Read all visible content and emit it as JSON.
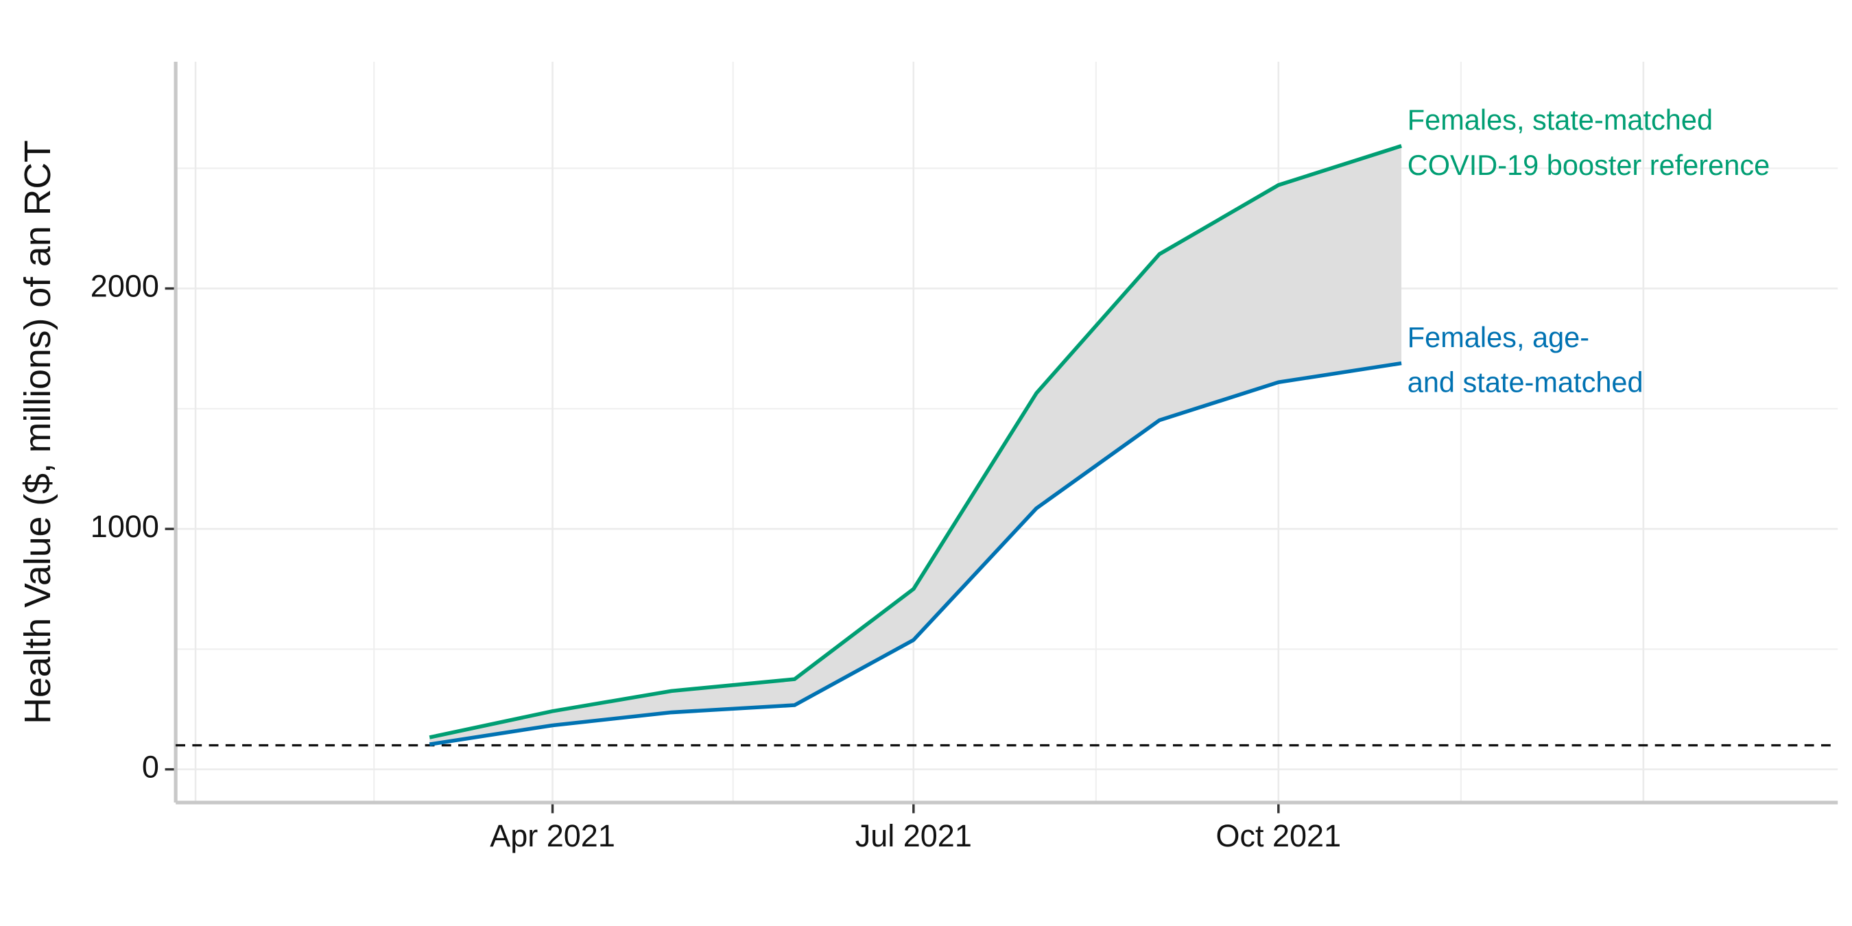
{
  "chart_data": {
    "type": "line",
    "ylabel": "Health Value ($, millions) of an RCT",
    "x": [
      "2021-03",
      "2021-04",
      "2021-05",
      "2021-06",
      "2021-07",
      "2021-08",
      "2021-09",
      "2021-10",
      "2021-11"
    ],
    "series": [
      {
        "name": [
          "Females, state-matched",
          "COVID-19 booster reference"
        ],
        "color": "#009e73",
        "values": [
          133,
          242,
          326,
          375,
          750,
          1565,
          2143,
          2430,
          2593
        ]
      },
      {
        "name": [
          "Females, age-",
          "and state-matched"
        ],
        "color": "#0072b2",
        "values": [
          104,
          183,
          237,
          267,
          538,
          1086,
          1452,
          1610,
          1689
        ]
      }
    ],
    "ribbon_color": "#dedede",
    "hline": 100,
    "xlim": [
      "2020-12-27",
      "2022-02-19"
    ],
    "xticks": [
      {
        "value": "2021-01",
        "label": null
      },
      {
        "value": "2021-04",
        "label": "Apr 2021"
      },
      {
        "value": "2021-07",
        "label": "Jul 2021"
      },
      {
        "value": "2021-10",
        "label": "Oct 2021"
      },
      {
        "value": "2022-01",
        "label": null
      }
    ],
    "ylim": [
      -138,
      2943
    ],
    "yticks": [
      0,
      1000,
      2000
    ],
    "grid": true
  }
}
